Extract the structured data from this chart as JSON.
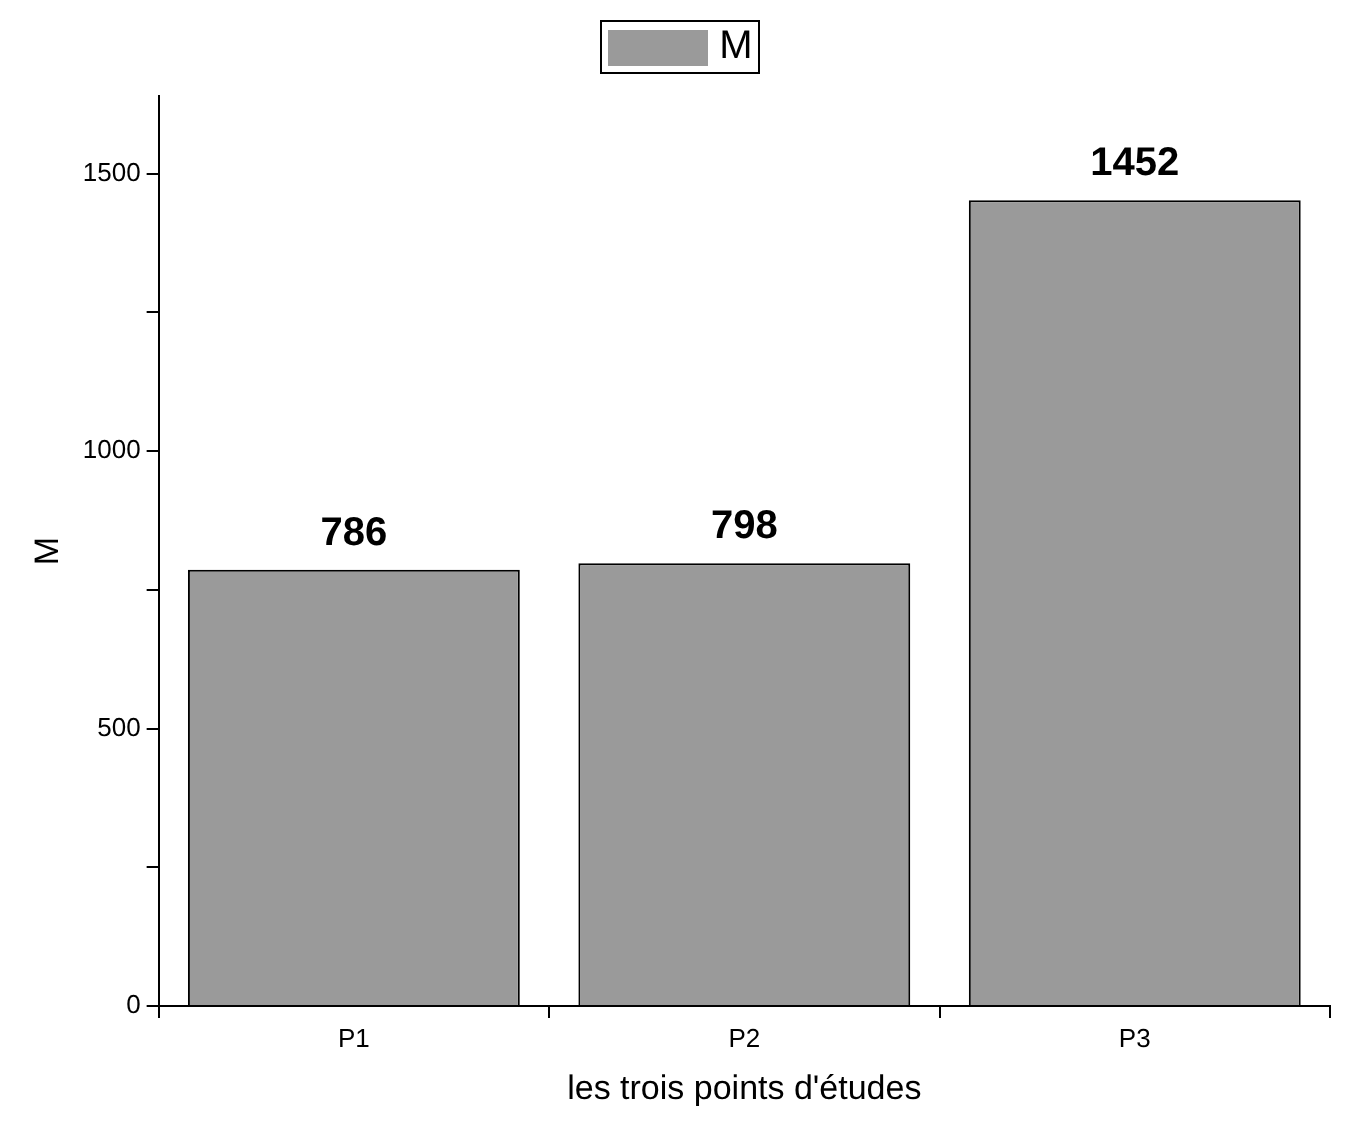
{
  "chart_data": {
    "type": "bar",
    "xlabel": "les trois points d'études",
    "ylabel": "M",
    "categories": [
      "P1",
      "P2",
      "P3"
    ],
    "series": [
      {
        "name": "M",
        "color": "#9a9a9a",
        "values": [
          786,
          798,
          1452
        ]
      }
    ],
    "ylim": [
      0,
      1640
    ],
    "yticks": [
      0,
      {
        "value": 250,
        "label": null
      },
      500,
      {
        "value": 750,
        "label": null
      },
      1000,
      {
        "value": 1250,
        "label": null
      },
      1500
    ],
    "data_labels": true,
    "legend": "top",
    "grid": false
  }
}
